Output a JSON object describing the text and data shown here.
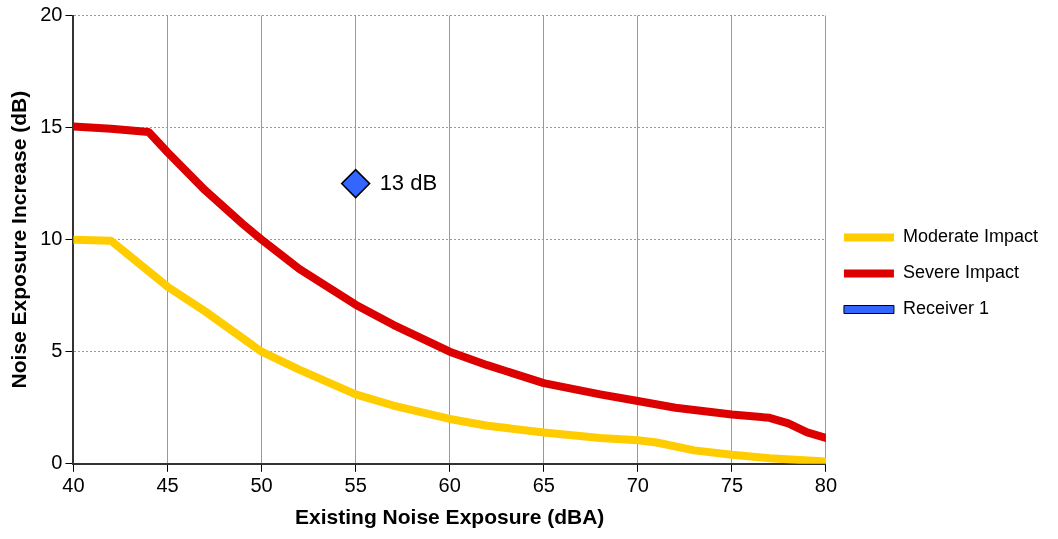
{
  "chart_data": {
    "type": "line",
    "xlabel": "Existing Noise Exposure (dBA)",
    "ylabel": "Noise Exposure Increase (dB)",
    "xlim": [
      40,
      80
    ],
    "xticks": [
      40,
      45,
      50,
      55,
      60,
      65,
      70,
      75,
      80
    ],
    "ylim": [
      0,
      20
    ],
    "yticks": [
      0,
      5,
      10,
      15,
      20
    ],
    "grid": true,
    "legend": "right",
    "line_style": "solid",
    "marker": "none",
    "series": [
      {
        "name": "Moderate Impact",
        "color": "#ffcc00",
        "x": [
          40,
          42,
          45,
          47,
          50,
          52,
          55,
          57,
          60,
          62,
          65,
          68,
          70,
          71,
          73,
          75,
          77,
          80
        ],
        "values": [
          10.0,
          9.95,
          7.9,
          6.8,
          5.0,
          4.2,
          3.1,
          2.6,
          2.0,
          1.7,
          1.4,
          1.15,
          1.05,
          0.95,
          0.6,
          0.4,
          0.25,
          0.1
        ]
      },
      {
        "name": "Severe Impact",
        "color": "#dd0000",
        "x": [
          40,
          42,
          44,
          45,
          47,
          49,
          50,
          52,
          55,
          57,
          60,
          62,
          65,
          68,
          70,
          72,
          75,
          77,
          78,
          79,
          80
        ],
        "values": [
          15.05,
          14.95,
          14.8,
          13.9,
          12.2,
          10.7,
          10.0,
          8.7,
          7.1,
          6.2,
          5.0,
          4.4,
          3.6,
          3.1,
          2.8,
          2.5,
          2.2,
          2.05,
          1.8,
          1.4,
          1.15
        ]
      },
      {
        "name": "Receiver 1",
        "type": "scatter",
        "marker": "diamond",
        "color": "#3366ff",
        "x": [
          55
        ],
        "values": [
          12.5
        ]
      }
    ],
    "annotations": [
      {
        "text": "13 dB",
        "x": 55,
        "y": 12.5
      }
    ]
  }
}
